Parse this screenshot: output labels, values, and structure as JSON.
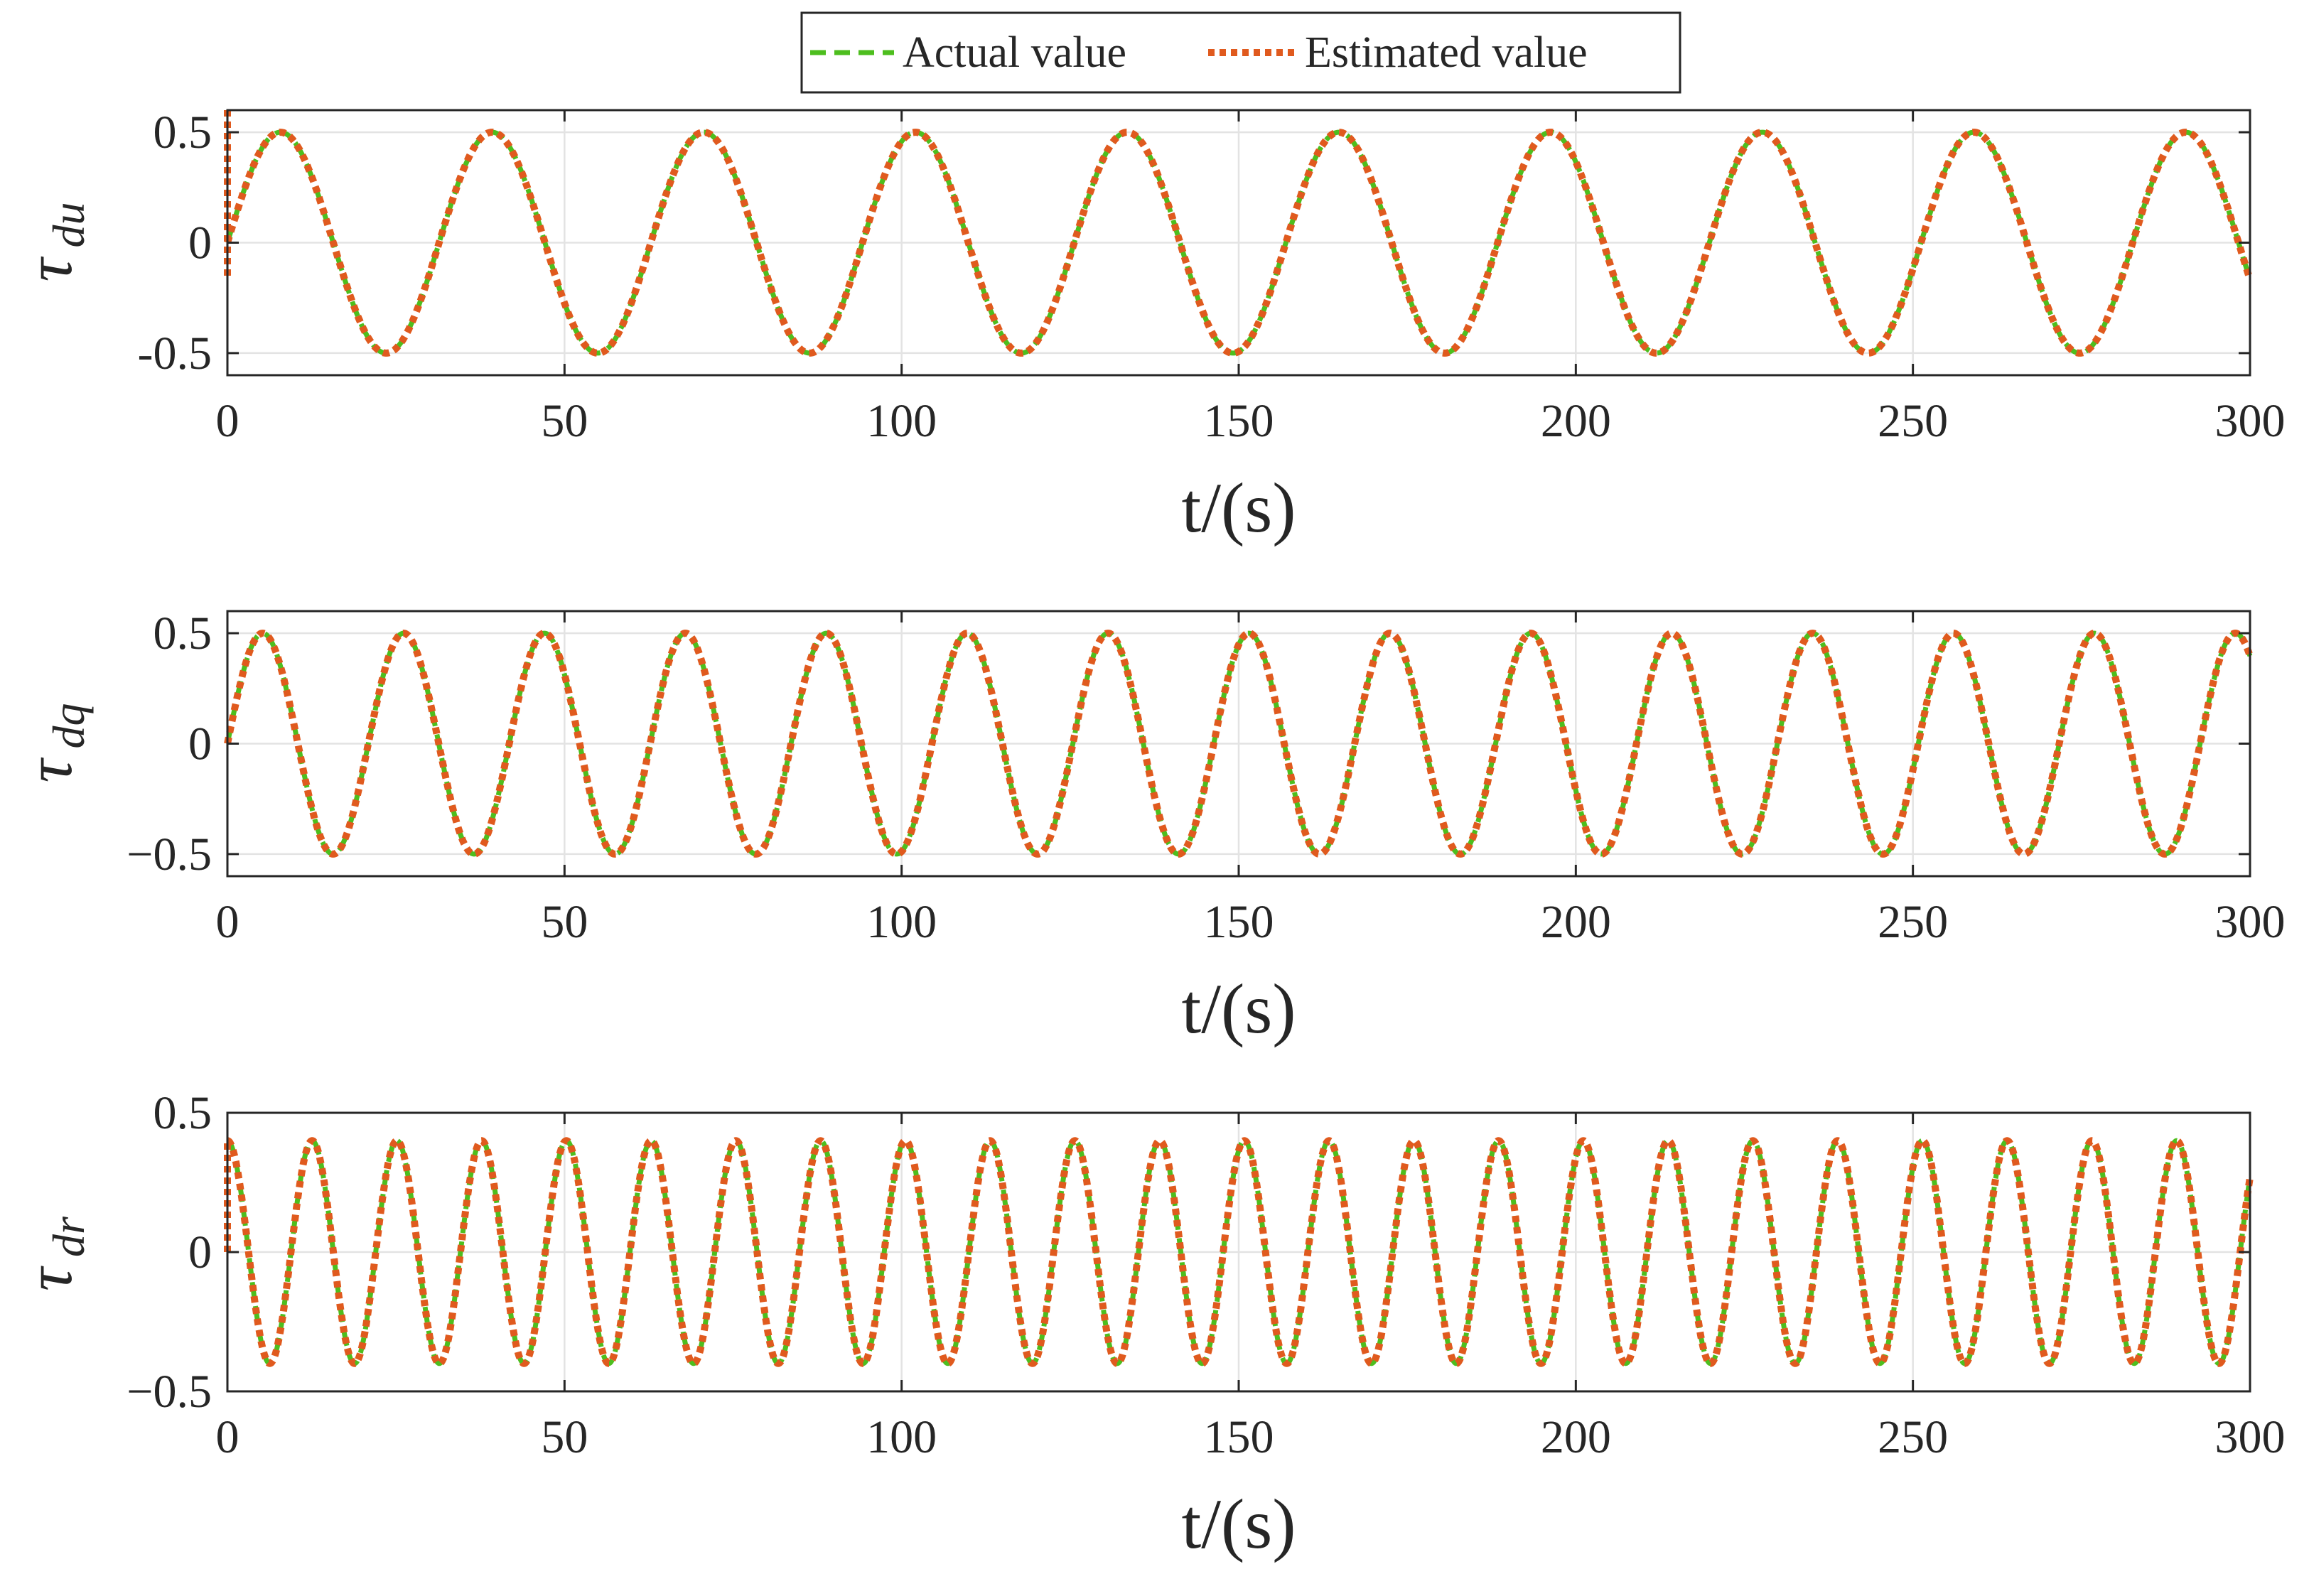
{
  "legend": {
    "position": "top-center",
    "entries": [
      {
        "label": "Actual value",
        "color": "#4dbe1e",
        "style": "dashed"
      },
      {
        "label": "Estimated value",
        "color": "#e05a1e",
        "style": "dotted"
      }
    ]
  },
  "chart_data": [
    {
      "type": "line",
      "ylabel": "τ",
      "ylabel_sub": "du",
      "xlabel": "t/(s)",
      "xlim": [
        0,
        300
      ],
      "ylim": [
        -0.6,
        0.6
      ],
      "xticks": [
        0,
        50,
        100,
        150,
        200,
        250,
        300
      ],
      "xtick_labels": [
        "0",
        "50",
        "100",
        "150",
        "200",
        "250",
        "300"
      ],
      "yticks": [
        -0.5,
        0,
        0.5
      ],
      "ytick_labels": [
        "-0.5",
        "0",
        "0.5"
      ],
      "grid": true,
      "series": [
        {
          "name": "Actual value",
          "function": "0.5*sin(2*pi*t/31.4)",
          "amplitude": 0.5,
          "period": 31.4,
          "phase": 0
        },
        {
          "name": "Estimated value",
          "function": "0.5*sin(2*pi*t/31.4)",
          "amplitude": 0.5,
          "period": 31.4,
          "phase": 0,
          "initial_transient": [
            0.6,
            -0.15
          ]
        }
      ]
    },
    {
      "type": "line",
      "ylabel": "τ",
      "ylabel_sub": "dq",
      "xlabel": "t/(s)",
      "xlim": [
        0,
        300
      ],
      "ylim": [
        -0.6,
        0.6
      ],
      "xticks": [
        0,
        50,
        100,
        150,
        200,
        250,
        300
      ],
      "xtick_labels": [
        "0",
        "50",
        "100",
        "150",
        "200",
        "250",
        "300"
      ],
      "yticks": [
        -0.5,
        0,
        0.5
      ],
      "ytick_labels": [
        "−0.5",
        "0",
        "0.5"
      ],
      "grid": true,
      "series": [
        {
          "name": "Actual value",
          "function": "0.5*sin(2*pi*t/20.9)",
          "amplitude": 0.5,
          "period": 20.9,
          "phase": 0
        },
        {
          "name": "Estimated value",
          "function": "0.5*sin(2*pi*t/20.9)",
          "amplitude": 0.5,
          "period": 20.9,
          "phase": 0
        }
      ]
    },
    {
      "type": "line",
      "ylabel": "τ",
      "ylabel_sub": "dr",
      "xlabel": "t/(s)",
      "xlim": [
        0,
        300
      ],
      "ylim": [
        -0.5,
        0.5
      ],
      "xticks": [
        0,
        50,
        100,
        150,
        200,
        250,
        300
      ],
      "xtick_labels": [
        "0",
        "50",
        "100",
        "150",
        "200",
        "250",
        "300"
      ],
      "yticks": [
        -0.5,
        0,
        0.5
      ],
      "ytick_labels": [
        "−0.5",
        "0",
        "0.5"
      ],
      "grid": true,
      "series": [
        {
          "name": "Actual value",
          "function": "0.4*cos(2*pi*t/12.57)",
          "amplitude": 0.4,
          "period": 12.57,
          "phase": 1.5708
        },
        {
          "name": "Estimated value",
          "function": "0.4*cos(2*pi*t/12.57)",
          "amplitude": 0.4,
          "period": 12.57,
          "phase": 1.5708,
          "initial_transient": [
            0.0,
            0.4
          ]
        }
      ]
    }
  ]
}
